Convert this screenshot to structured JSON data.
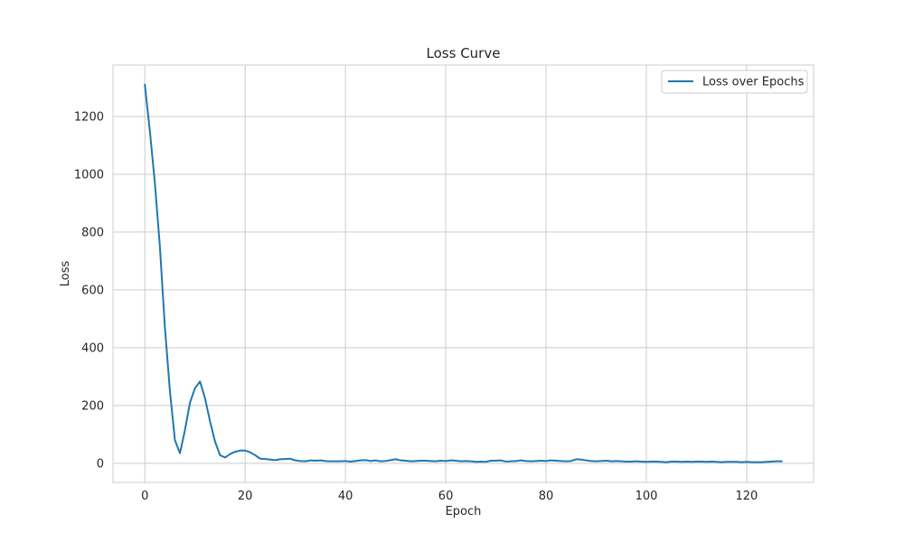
{
  "chart_data": {
    "type": "line",
    "title": "Loss Curve",
    "xlabel": "Epoch",
    "ylabel": "Loss",
    "xlim": [
      -6.35,
      133.35
    ],
    "ylim": [
      -66,
      1378
    ],
    "xticks": [
      0,
      20,
      40,
      60,
      80,
      100,
      120
    ],
    "yticks": [
      0,
      200,
      400,
      600,
      800,
      1000,
      1200
    ],
    "grid": true,
    "legend_position": "top-right",
    "line_color": "#1f77b4",
    "series": [
      {
        "name": "Loss over Epochs",
        "x": [
          0,
          1,
          2,
          3,
          4,
          5,
          6,
          7,
          8,
          9,
          10,
          11,
          12,
          13,
          14,
          15,
          16,
          17,
          18,
          19,
          20,
          21,
          22,
          23,
          24,
          25,
          26,
          27,
          28,
          29,
          30,
          31,
          32,
          33,
          34,
          35,
          36,
          37,
          38,
          39,
          40,
          41,
          42,
          43,
          44,
          45,
          46,
          47,
          48,
          49,
          50,
          51,
          52,
          53,
          54,
          55,
          56,
          57,
          58,
          59,
          60,
          61,
          62,
          63,
          64,
          65,
          66,
          67,
          68,
          69,
          70,
          71,
          72,
          73,
          74,
          75,
          76,
          77,
          78,
          79,
          80,
          81,
          82,
          83,
          84,
          85,
          86,
          87,
          88,
          89,
          90,
          91,
          92,
          93,
          94,
          95,
          96,
          97,
          98,
          99,
          100,
          101,
          102,
          103,
          104,
          105,
          106,
          107,
          108,
          109,
          110,
          111,
          112,
          113,
          114,
          115,
          116,
          117,
          118,
          119,
          120,
          121,
          122,
          123,
          124,
          125,
          126,
          127
        ],
        "values": [
          1310,
          1150,
          970,
          750,
          470,
          250,
          80,
          35,
          115,
          210,
          260,
          283,
          225,
          145,
          75,
          28,
          20,
          32,
          40,
          44,
          44,
          38,
          28,
          16,
          15,
          13,
          11,
          14,
          15,
          16,
          10,
          8,
          7,
          10,
          9,
          10,
          8,
          7,
          7,
          7,
          8,
          6,
          8,
          10,
          11,
          8,
          10,
          7,
          8,
          11,
          14,
          10,
          9,
          7,
          8,
          9,
          9,
          8,
          7,
          9,
          8,
          10,
          9,
          7,
          8,
          7,
          5,
          6,
          5,
          9,
          9,
          10,
          6,
          7,
          8,
          10,
          8,
          7,
          8,
          9,
          8,
          10,
          9,
          8,
          7,
          8,
          14,
          13,
          10,
          8,
          7,
          8,
          9,
          7,
          8,
          7,
          6,
          6,
          7,
          6,
          5,
          6,
          6,
          5,
          4,
          6,
          6,
          5,
          6,
          5,
          6,
          6,
          5,
          6,
          5,
          4,
          5,
          5,
          5,
          4,
          5,
          4,
          4,
          4,
          5,
          6,
          7,
          7
        ]
      }
    ]
  }
}
